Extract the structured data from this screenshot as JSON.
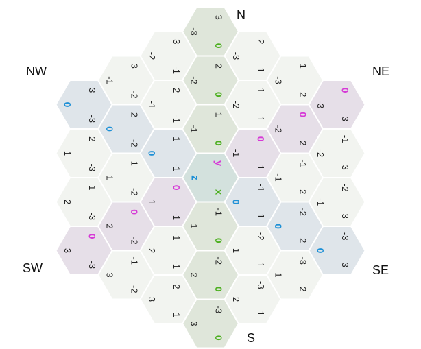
{
  "compass": {
    "n": "N",
    "ne": "NE",
    "se": "SE",
    "s": "S",
    "sw": "SW",
    "nw": "NW"
  },
  "axes": {
    "q": {
      "label": "x",
      "color": "#4caf1f"
    },
    "r": {
      "label": "z",
      "color": "#1e90d6"
    },
    "s": {
      "label": "y",
      "color": "#d63ad6"
    }
  },
  "hex_grid": {
    "radius": 3,
    "cells": [
      {
        "q": 0,
        "r": -3,
        "s": 3
      },
      {
        "q": 1,
        "r": -3,
        "s": 2
      },
      {
        "q": 2,
        "r": -3,
        "s": 1
      },
      {
        "q": 3,
        "r": -3,
        "s": 0
      },
      {
        "q": -1,
        "r": -2,
        "s": 3
      },
      {
        "q": 0,
        "r": -2,
        "s": 2
      },
      {
        "q": 1,
        "r": -2,
        "s": 1
      },
      {
        "q": 2,
        "r": -2,
        "s": 0
      },
      {
        "q": 3,
        "r": -2,
        "s": -1
      },
      {
        "q": -2,
        "r": -1,
        "s": 3
      },
      {
        "q": -1,
        "r": -1,
        "s": 2
      },
      {
        "q": 0,
        "r": -1,
        "s": 1
      },
      {
        "q": 1,
        "r": -1,
        "s": 0
      },
      {
        "q": 2,
        "r": -1,
        "s": -1
      },
      {
        "q": 3,
        "r": -1,
        "s": -2
      },
      {
        "q": -3,
        "r": 0,
        "s": 3
      },
      {
        "q": -2,
        "r": 0,
        "s": 2
      },
      {
        "q": -1,
        "r": 0,
        "s": 1
      },
      {
        "q": 0,
        "r": 0,
        "s": 0
      },
      {
        "q": 1,
        "r": 0,
        "s": -1
      },
      {
        "q": 2,
        "r": 0,
        "s": -2
      },
      {
        "q": 3,
        "r": 0,
        "s": -3
      },
      {
        "q": -3,
        "r": 1,
        "s": 2
      },
      {
        "q": -2,
        "r": 1,
        "s": 1
      },
      {
        "q": -1,
        "r": 1,
        "s": 0
      },
      {
        "q": 0,
        "r": 1,
        "s": -1
      },
      {
        "q": 1,
        "r": 1,
        "s": -2
      },
      {
        "q": 2,
        "r": 1,
        "s": -3
      },
      {
        "q": -3,
        "r": 2,
        "s": 1
      },
      {
        "q": -2,
        "r": 2,
        "s": 0
      },
      {
        "q": -1,
        "r": 2,
        "s": -1
      },
      {
        "q": 0,
        "r": 2,
        "s": -2
      },
      {
        "q": 1,
        "r": 2,
        "s": -3
      },
      {
        "q": -3,
        "r": 3,
        "s": 0
      },
      {
        "q": -2,
        "r": 3,
        "s": -1
      },
      {
        "q": -1,
        "r": 3,
        "s": -2
      },
      {
        "q": 0,
        "r": 3,
        "s": -3
      }
    ]
  },
  "colors": {
    "background": "#ffffff",
    "cell_default": "#f2f4f0",
    "cell_q_zero": "#dfe6da",
    "cell_r_zero": "#dfe5ea",
    "cell_s_zero": "#e6dfe8",
    "cell_center": "#d3e1dd",
    "q_text": "#4caf1f",
    "r_text": "#1e90d6",
    "s_text": "#d63ad6",
    "number_text": "#222222"
  }
}
